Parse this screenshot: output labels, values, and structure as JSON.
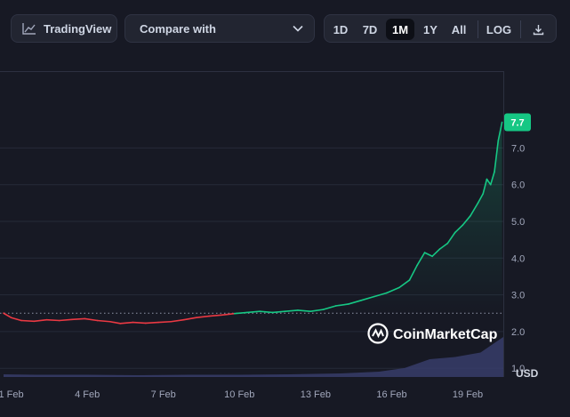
{
  "toolbar": {
    "tradingview_label": "TradingView",
    "compare_label": "Compare with",
    "ranges": [
      "1D",
      "7D",
      "1M",
      "1Y",
      "All"
    ],
    "active_range": "1M",
    "log_label": "LOG"
  },
  "watermark": {
    "text": "CoinMarketCap"
  },
  "chart_data": {
    "type": "line",
    "currency_label": "USD",
    "current_value_label": "7.7",
    "x_tick_labels": [
      "1 Feb",
      "4 Feb",
      "7 Feb",
      "10 Feb",
      "13 Feb",
      "16 Feb",
      "19 Feb"
    ],
    "y_tick_labels": [
      "1.0",
      "2.0",
      "3.0",
      "4.0",
      "5.0",
      "6.0",
      "7.0"
    ],
    "y_ticks": [
      1,
      2,
      3,
      4,
      5,
      6,
      7
    ],
    "ylim": [
      0.9,
      7.85
    ],
    "x_range_days": [
      0.7,
      20.4
    ],
    "baseline_price": 2.5,
    "colors": {
      "up": "#16c784",
      "down": "#ea3943",
      "label_bg": "#16c784",
      "volume": "#3a3f6e"
    },
    "series": [
      {
        "name": "price",
        "points": [
          [
            0.7,
            2.5
          ],
          [
            1.0,
            2.38
          ],
          [
            1.4,
            2.3
          ],
          [
            1.9,
            2.28
          ],
          [
            2.4,
            2.32
          ],
          [
            2.9,
            2.3
          ],
          [
            3.4,
            2.33
          ],
          [
            3.9,
            2.35
          ],
          [
            4.4,
            2.3
          ],
          [
            4.9,
            2.27
          ],
          [
            5.3,
            2.22
          ],
          [
            5.8,
            2.25
          ],
          [
            6.3,
            2.23
          ],
          [
            6.8,
            2.25
          ],
          [
            7.3,
            2.27
          ],
          [
            7.8,
            2.32
          ],
          [
            8.3,
            2.38
          ],
          [
            8.8,
            2.42
          ],
          [
            9.3,
            2.45
          ],
          [
            9.8,
            2.49
          ],
          [
            10.3,
            2.52
          ],
          [
            10.8,
            2.55
          ],
          [
            11.3,
            2.52
          ],
          [
            11.8,
            2.55
          ],
          [
            12.3,
            2.58
          ],
          [
            12.8,
            2.55
          ],
          [
            13.3,
            2.6
          ],
          [
            13.8,
            2.7
          ],
          [
            14.3,
            2.75
          ],
          [
            14.8,
            2.85
          ],
          [
            15.3,
            2.95
          ],
          [
            15.8,
            3.05
          ],
          [
            16.3,
            3.2
          ],
          [
            16.7,
            3.4
          ],
          [
            17.0,
            3.8
          ],
          [
            17.3,
            4.15
          ],
          [
            17.6,
            4.05
          ],
          [
            17.9,
            4.25
          ],
          [
            18.2,
            4.4
          ],
          [
            18.5,
            4.7
          ],
          [
            18.8,
            4.9
          ],
          [
            19.1,
            5.15
          ],
          [
            19.4,
            5.5
          ],
          [
            19.6,
            5.75
          ],
          [
            19.75,
            6.15
          ],
          [
            19.9,
            6.0
          ],
          [
            20.05,
            6.35
          ],
          [
            20.2,
            7.2
          ],
          [
            20.35,
            7.7
          ]
        ]
      }
    ],
    "volume": [
      [
        0.7,
        0.06
      ],
      [
        2.0,
        0.05
      ],
      [
        4.0,
        0.05
      ],
      [
        6.0,
        0.04
      ],
      [
        8.0,
        0.05
      ],
      [
        10.0,
        0.05
      ],
      [
        12.0,
        0.06
      ],
      [
        14.0,
        0.08
      ],
      [
        15.5,
        0.12
      ],
      [
        16.5,
        0.2
      ],
      [
        17.5,
        0.4
      ],
      [
        18.5,
        0.45
      ],
      [
        19.5,
        0.55
      ],
      [
        20.4,
        0.9
      ]
    ]
  }
}
